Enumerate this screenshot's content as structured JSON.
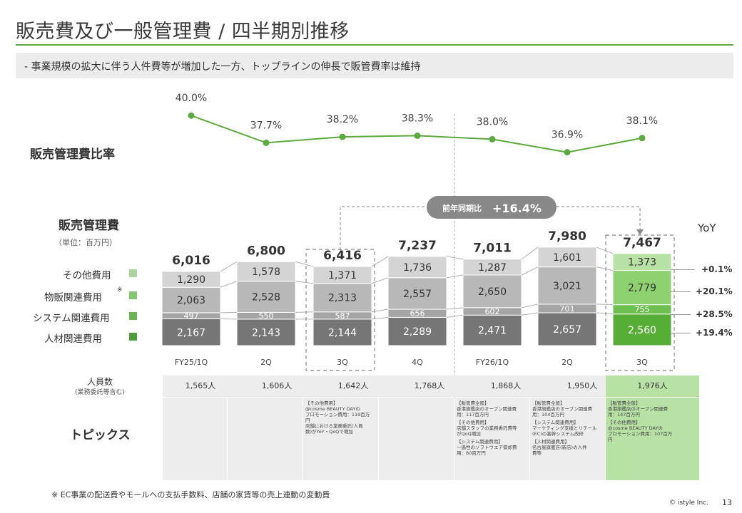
{
  "header": {
    "title": "販売費及び一般管理費 / 四半期別推移",
    "subtitle": "‐  事業規模の拡大に伴う人件費等が増加した一方、トップラインの伸長で販管費率は維持"
  },
  "labels": {
    "ratio_label": "販売管理費比率",
    "sga_label": "販売管理費",
    "unit": "（単位：百万円）",
    "yoy_title": "YoY",
    "headcount_label": "人員数",
    "headcount_sublabel": "(業務委託等含む)",
    "topics_label": "トピックス",
    "callout_prefix": "前年同期比",
    "callout_value": "+16.4%"
  },
  "legend": [
    {
      "label": "その他費用",
      "color": "#a9d59a"
    },
    {
      "label": "物販関連費用",
      "note": "※",
      "color": "#84c66d"
    },
    {
      "label": "システム関連費用",
      "color": "#68b553"
    },
    {
      "label": "人材関連費用",
      "color": "#4c9e39"
    }
  ],
  "chart_data": [
    {
      "type": "line",
      "series": [
        {
          "values": [
            40.0,
            37.7,
            38.2,
            38.3,
            38.0,
            36.9,
            38.1
          ]
        }
      ],
      "categories": [
        "FY25/1Q",
        "2Q",
        "3Q",
        "4Q",
        "FY26/1Q",
        "2Q",
        "3Q"
      ],
      "value_labels": [
        "40.0%",
        "37.7%",
        "38.2%",
        "38.3%",
        "38.0%",
        "36.9%",
        "38.1%"
      ],
      "color": "#5aaa3e"
    },
    {
      "type": "bar",
      "stacked": true,
      "categories": [
        "FY25/1Q",
        "2Q",
        "3Q",
        "4Q",
        "FY26/1Q",
        "2Q",
        "3Q"
      ],
      "series": [
        {
          "name": "人材関連費用",
          "values": [
            2167,
            2143,
            2144,
            2289,
            2471,
            2657,
            2560
          ],
          "labels": [
            "2,167",
            "2,143",
            "2,144",
            "2,289",
            "2,471",
            "2,657",
            "2,560"
          ]
        },
        {
          "name": "システム関連費用",
          "values": [
            497,
            550,
            587,
            656,
            602,
            701,
            755
          ],
          "labels": [
            "497",
            "550",
            "587",
            "656",
            "602",
            "701",
            "755"
          ]
        },
        {
          "name": "物販関連費用",
          "values": [
            2063,
            2528,
            2313,
            2557,
            2650,
            3021,
            2779
          ],
          "labels": [
            "2,063",
            "2,528",
            "2,313",
            "2,557",
            "2,650",
            "3,021",
            "2,779"
          ]
        },
        {
          "name": "その他費用",
          "values": [
            1290,
            1578,
            1371,
            1736,
            1287,
            1601,
            1373
          ],
          "labels": [
            "1,290",
            "1,578",
            "1,371",
            "1,736",
            "1,287",
            "1,601",
            "1,373"
          ]
        }
      ],
      "totals": [
        6016,
        6800,
        6416,
        7237,
        7011,
        7980,
        7467
      ],
      "total_labels": [
        "6,016",
        "6,800",
        "6,416",
        "7,237",
        "7,011",
        "7,980",
        "7,467"
      ],
      "colors": {
        "past": [
          "#767676",
          "#a5a5a5",
          "#b8b8b8",
          "#d4d4d4"
        ],
        "current": [
          "#56ae37",
          "#6dbf4f",
          "#8ed171",
          "#b8e2a5"
        ]
      },
      "yoy": [
        {
          "series": "その他費用",
          "label": "+0.1%"
        },
        {
          "series": "物販関連費用",
          "label": "+20.1%"
        },
        {
          "series": "システム関連費用",
          "label": "+28.5%"
        },
        {
          "series": "人材関連費用",
          "label": "+19.4%"
        }
      ]
    }
  ],
  "table": {
    "headcount": [
      "1,565人",
      "1,606人",
      "1,642人",
      "1,768人",
      "1,868人",
      "1,950人",
      "1,976人"
    ],
    "topics": [
      [],
      [
        "【その他費用】",
        "@cosme BEAUTY DAYの",
        "プロモーション費用：119百万",
        "円",
        "店舗における業務委託(人員",
        "数)がYoY・QoQで増加"
      ],
      [],
      [
        "【販管費全般】",
        "香港旗艦店のオープン関連費",
        "用：117百万円",
        "【その他費用】",
        "店舗スタッフの業務委託費等",
        "がQoQ増加",
        "【システム関連費用】",
        "一過性のソフトウエア償却費",
        "用：80百万円"
      ],
      [
        "【販管費全般】",
        "香港旗艦店のオープン関連費",
        "用：104百万円",
        "【システム関連費用】",
        "マーケティング支援とリテール",
        "(EC)の基幹システム改修",
        "【人材関連費用】",
        "名古屋旗艦店(新店)の人件",
        "費等"
      ],
      [
        "【販管費全般】",
        "香港旗艦店のオープン関連費",
        "用：147百万円",
        "【その他費用】",
        "@cosme BEAUTY DAYの",
        "プロモーション費用：107百万",
        "円"
      ],
      []
    ]
  },
  "footer": {
    "footnote": "※  EC事業の配送費やモールへの支払手数料、店舗の家賃等の売上連動の変動費",
    "copyright": "© istyle Inc.",
    "page": "13"
  }
}
